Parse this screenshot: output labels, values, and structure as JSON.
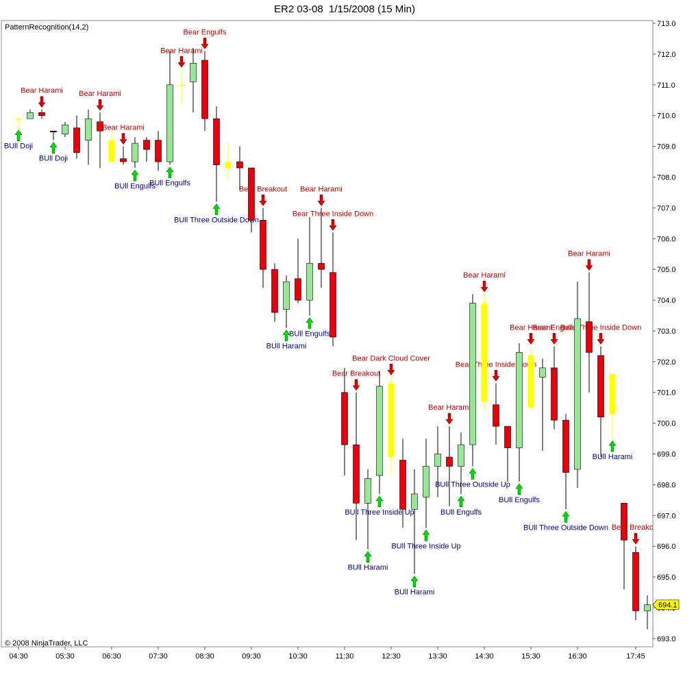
{
  "chart_data": {
    "type": "candlestick",
    "title": "ER2 03-08  1/15/2008 (15 Min)",
    "indicator": "PatternRecognition(14,2)",
    "copyright": "© 2008 NinjaTrader, LLC",
    "categories": [
      "04:30",
      null,
      null,
      null,
      "05:30",
      null,
      null,
      null,
      "06:30",
      null,
      null,
      null,
      "07:30",
      null,
      null,
      null,
      "08:30",
      null,
      null,
      null,
      "09:30",
      null,
      null,
      null,
      "10:30",
      null,
      null,
      null,
      "11:30",
      null,
      null,
      null,
      "12:30",
      null,
      null,
      null,
      "13:30",
      null,
      null,
      null,
      "14:30",
      null,
      null,
      null,
      "15:30",
      null,
      null,
      null,
      "16:30",
      null,
      null,
      null,
      null,
      "17:45",
      null
    ],
    "open": [
      709.9,
      709.9,
      710.1,
      709.5,
      709.4,
      709.6,
      709.2,
      709.8,
      709.2,
      708.6,
      708.5,
      709.2,
      709.2,
      708.5,
      711.0,
      711.1,
      711.8,
      709.9,
      708.5,
      708.5,
      708.3,
      706.6,
      705.0,
      703.7,
      704.7,
      704.0,
      705.2,
      704.9,
      701.0,
      699.3,
      697.4,
      698.3,
      701.3,
      698.8,
      697.2,
      697.6,
      698.6,
      698.9,
      698.6,
      699.3,
      703.9,
      700.6,
      699.9,
      699.2,
      702.2,
      701.5,
      701.8,
      700.1,
      698.5,
      703.3,
      702.2,
      701.6,
      697.4,
      695.8,
      693.9
    ],
    "high": [
      709.95,
      710.2,
      710.2,
      709.5,
      709.8,
      710.0,
      710.2,
      710.1,
      709.5,
      709.0,
      709.3,
      709.3,
      709.5,
      712.1,
      711.5,
      712.2,
      712.1,
      710.3,
      709.1,
      709.0,
      708.3,
      707.0,
      705.2,
      704.8,
      706.0,
      706.7,
      707.0,
      706.2,
      701.8,
      701.0,
      698.5,
      701.7,
      701.5,
      699.5,
      698.5,
      699.5,
      699.9,
      699.9,
      699.7,
      704.2,
      704.2,
      701.3,
      699.9,
      702.6,
      702.5,
      702.1,
      702.5,
      700.3,
      704.6,
      704.9,
      702.5,
      701.6,
      697.4,
      696.0,
      694.4
    ],
    "low": [
      709.6,
      709.9,
      709.9,
      709.2,
      709.3,
      708.6,
      708.4,
      708.3,
      708.5,
      708.4,
      708.3,
      708.5,
      708.2,
      708.4,
      710.4,
      710.1,
      709.5,
      707.2,
      707.9,
      707.6,
      706.2,
      704.4,
      703.3,
      703.1,
      703.9,
      703.5,
      704.4,
      702.5,
      698.3,
      696.2,
      695.9,
      697.7,
      698.3,
      696.6,
      695.1,
      696.6,
      697.6,
      697.3,
      697.7,
      698.6,
      700.4,
      699.3,
      698.1,
      698.1,
      700.5,
      699.1,
      699.8,
      697.2,
      697.9,
      701.0,
      698.9,
      699.5,
      694.6,
      693.6,
      693.3
    ],
    "close": [
      709.9,
      710.1,
      710.0,
      709.5,
      709.7,
      708.8,
      709.9,
      709.5,
      708.5,
      708.5,
      709.1,
      708.9,
      708.5,
      711.0,
      711.0,
      711.7,
      709.9,
      708.4,
      708.3,
      708.3,
      706.6,
      705.0,
      703.6,
      704.6,
      704.0,
      705.2,
      705.0,
      702.8,
      699.3,
      697.4,
      698.2,
      701.2,
      698.9,
      697.2,
      697.7,
      698.6,
      699.0,
      698.6,
      699.3,
      703.9,
      700.7,
      699.9,
      699.2,
      702.3,
      700.5,
      701.8,
      700.1,
      698.4,
      703.4,
      702.3,
      700.2,
      700.3,
      696.2,
      693.9,
      694.1
    ],
    "up_color": "#98e698",
    "down_color": "#e8000b",
    "highlight": {
      "color": "#ffff00",
      "indices": [
        0,
        8,
        14,
        18,
        32,
        40,
        44,
        51
      ]
    },
    "ylim": [
      692.73,
      713.09
    ],
    "yticks": [
      {
        "value": 693,
        "label": "693.0"
      },
      {
        "value": 694,
        "label": "694.0"
      },
      {
        "value": 695,
        "label": "695.0"
      },
      {
        "value": 696,
        "label": "696.0"
      },
      {
        "value": 697,
        "label": "697.0"
      },
      {
        "value": 698,
        "label": "698.0"
      },
      {
        "value": 699,
        "label": "699.0"
      },
      {
        "value": 700,
        "label": "700.0"
      },
      {
        "value": 701,
        "label": "701.0"
      },
      {
        "value": 702,
        "label": "702.0"
      },
      {
        "value": 703,
        "label": "703.0"
      },
      {
        "value": 704,
        "label": "704.0"
      },
      {
        "value": 705,
        "label": "705.0"
      },
      {
        "value": 706,
        "label": "706.0"
      },
      {
        "value": 707,
        "label": "707.0"
      },
      {
        "value": 708,
        "label": "708.0"
      },
      {
        "value": 709,
        "label": "709.0"
      },
      {
        "value": 710,
        "label": "710.0"
      },
      {
        "value": 711,
        "label": "711.0"
      },
      {
        "value": 712,
        "label": "712.0"
      },
      {
        "value": 713,
        "label": "713.0"
      }
    ],
    "grid": false,
    "patterns": [
      {
        "label": "Bear Harami",
        "index": 2,
        "direction": "bear"
      },
      {
        "label": "Bear Harami",
        "index": 7,
        "direction": "bear"
      },
      {
        "label": "Bear Harami",
        "index": 9,
        "direction": "bear"
      },
      {
        "label": "Bear Harami",
        "index": 14,
        "direction": "bear"
      },
      {
        "label": "Bear Engulfs",
        "index": 16,
        "direction": "bear"
      },
      {
        "label": "Bear Breakout",
        "index": 21,
        "direction": "bear"
      },
      {
        "label": "Bear Harami",
        "index": 26,
        "direction": "bear"
      },
      {
        "label": "Bear Three Inside Down",
        "index": 27,
        "direction": "bear"
      },
      {
        "label": "Bear Breakout",
        "index": 29,
        "direction": "bear"
      },
      {
        "label": "Bear Dark Cloud Cover",
        "index": 32,
        "direction": "bear"
      },
      {
        "label": "Bear Harami",
        "index": 37,
        "direction": "bear"
      },
      {
        "label": "Bear Harami",
        "index": 40,
        "direction": "bear"
      },
      {
        "label": "Bear Three Inside Down",
        "index": 41,
        "direction": "bear"
      },
      {
        "label": "Bear Harami",
        "index": 44,
        "direction": "bear"
      },
      {
        "label": "Bear Engulfs",
        "index": 46,
        "direction": "bear"
      },
      {
        "label": "Bear Harami",
        "index": 49,
        "direction": "bear"
      },
      {
        "label": "Bear Three Inside Down",
        "index": 50,
        "direction": "bear"
      },
      {
        "label": "Bear Breakout",
        "index": 53,
        "direction": "bear"
      },
      {
        "label": "BUll Doji",
        "index": 0,
        "direction": "bull"
      },
      {
        "label": "BUll Doji",
        "index": 3,
        "direction": "bull"
      },
      {
        "label": "BUll Engulfs",
        "index": 10,
        "direction": "bull"
      },
      {
        "label": "BUll Engulfs",
        "index": 13,
        "direction": "bull"
      },
      {
        "label": "BUll Three Outside Down",
        "index": 17,
        "direction": "bull"
      },
      {
        "label": "BUll Harami",
        "index": 23,
        "direction": "bull"
      },
      {
        "label": "BUll Engulfs",
        "index": 25,
        "direction": "bull"
      },
      {
        "label": "BUll Harami",
        "index": 30,
        "direction": "bull"
      },
      {
        "label": "BUll Three Inside Up",
        "index": 31,
        "direction": "bull"
      },
      {
        "label": "BUll Harami",
        "index": 34,
        "direction": "bull"
      },
      {
        "label": "BUll Three Inside Up",
        "index": 35,
        "direction": "bull"
      },
      {
        "label": "BUll Engulfs",
        "index": 38,
        "direction": "bull"
      },
      {
        "label": "BUll Three Outside Up",
        "index": 39,
        "direction": "bull"
      },
      {
        "label": "BUll Engulfs",
        "index": 43,
        "direction": "bull"
      },
      {
        "label": "BUll Three Outside Down",
        "index": 47,
        "direction": "bull"
      },
      {
        "label": "BUll Harami",
        "index": 51,
        "direction": "bull"
      }
    ]
  }
}
